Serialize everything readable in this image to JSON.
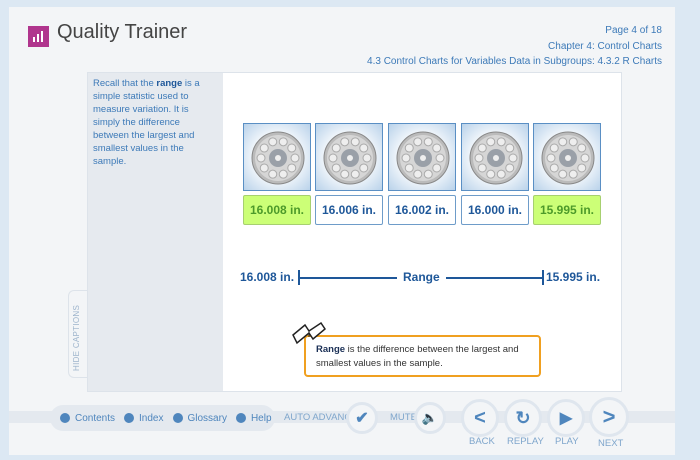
{
  "header": {
    "title": "Quality Trainer",
    "page": "Page 4 of 18",
    "chapter": "Chapter 4: Control Charts",
    "section": "4.3 Control Charts for Variables Data in Subgroups: 4.3.2 R Charts"
  },
  "caption": {
    "pre": "Recall that the ",
    "bold": "range",
    "post": " is a simple statistic used to measure variation. It is simply the difference between the largest and smallest values in the sample."
  },
  "hide_captions": "HIDE CAPTIONS",
  "wheels": [
    {
      "value": "16.008 in.",
      "highlight": true
    },
    {
      "value": "16.006 in.",
      "highlight": false
    },
    {
      "value": "16.002 in.",
      "highlight": false
    },
    {
      "value": "16.000 in.",
      "highlight": false
    },
    {
      "value": "15.995 in.",
      "highlight": true
    }
  ],
  "range": {
    "left": "16.008 in.",
    "label": "Range",
    "right": "15.995 in."
  },
  "definition": {
    "term": "Range",
    "text": " is the difference between the largest and smallest values in the sample.",
    "icon": "book-icon"
  },
  "nav": {
    "contents": "Contents",
    "index": "Index",
    "glossary": "Glossary",
    "help": "Help",
    "auto_advance": "AUTO ADVANCE",
    "mute": "MUTE",
    "back": "BACK",
    "replay": "REPLAY",
    "play": "PLAY",
    "next": "NEXT"
  },
  "colors": {
    "accent": "#1e5799",
    "highlight": "#ccff77",
    "brand": "#b0358d",
    "callout": "#f0a020"
  }
}
